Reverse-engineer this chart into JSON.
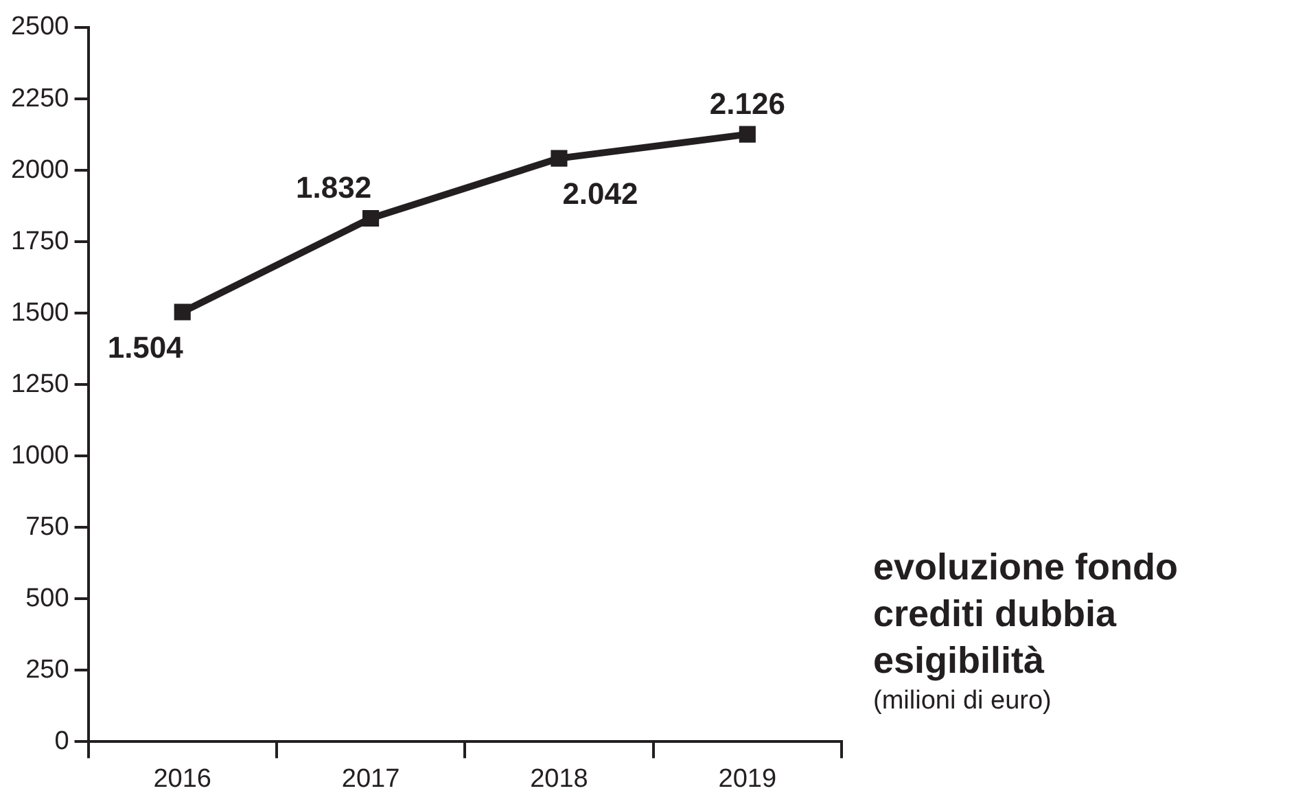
{
  "chart_data": {
    "type": "line",
    "title": "evoluzione fondo crediti dubbia esigibilità",
    "subtitle": "(milioni di euro)",
    "categories": [
      "2016",
      "2017",
      "2018",
      "2019"
    ],
    "series": [
      {
        "color": "#231f20",
        "values": [
          1504,
          1832,
          2042,
          2126
        ],
        "value_labels": [
          "1.504",
          "1.832",
          "2.042",
          "2.126"
        ]
      }
    ],
    "ylim": [
      0,
      2500
    ],
    "yticks": [
      0,
      250,
      500,
      750,
      1000,
      1250,
      1500,
      1750,
      2000,
      2250,
      2500
    ],
    "grid": false,
    "legend": false,
    "marker": "square",
    "line_style": "solid"
  }
}
